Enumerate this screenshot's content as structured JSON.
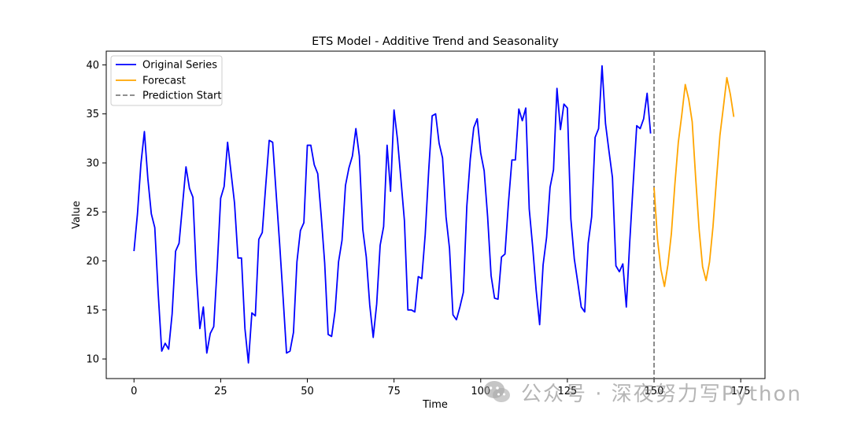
{
  "chart_data": {
    "type": "line",
    "title": "ETS Model - Additive Trend and Seasonality",
    "xlabel": "Time",
    "ylabel": "Value",
    "xlim": [
      -8,
      182
    ],
    "ylim": [
      8.0,
      41.4
    ],
    "xticks": [
      0,
      25,
      50,
      75,
      100,
      125,
      150,
      175
    ],
    "yticks": [
      10,
      15,
      20,
      25,
      30,
      35,
      40
    ],
    "grid": false,
    "legend_position": "top-left",
    "series": [
      {
        "name": "Original Series",
        "color": "#0000ff",
        "x_start": 0,
        "values": [
          21.0,
          24.8,
          29.9,
          33.2,
          28.4,
          24.8,
          23.4,
          16.6,
          10.8,
          11.6,
          11.0,
          14.6,
          21.0,
          21.8,
          25.7,
          29.6,
          27.4,
          26.5,
          18.6,
          13.1,
          15.3,
          10.6,
          12.6,
          13.3,
          19.4,
          26.4,
          27.6,
          32.1,
          29.0,
          25.9,
          20.3,
          20.3,
          13.1,
          9.6,
          14.7,
          14.4,
          22.2,
          22.9,
          27.7,
          32.3,
          32.1,
          26.9,
          21.8,
          16.3,
          10.6,
          10.8,
          12.7,
          19.9,
          23.1,
          23.9,
          31.8,
          31.8,
          29.8,
          28.9,
          24.6,
          19.8,
          12.5,
          12.3,
          14.9,
          19.9,
          22.1,
          27.7,
          29.5,
          30.7,
          33.5,
          30.7,
          23.2,
          20.4,
          15.5,
          12.2,
          15.6,
          21.6,
          23.5,
          31.8,
          27.1,
          35.4,
          32.4,
          28.3,
          24.1,
          15.0,
          15.0,
          14.8,
          18.4,
          18.2,
          22.7,
          29.2,
          34.8,
          35.0,
          32.0,
          30.5,
          24.5,
          21.3,
          14.5,
          14.0,
          15.3,
          16.8,
          25.6,
          30.4,
          33.6,
          34.5,
          31.0,
          29.2,
          24.5,
          18.5,
          16.2,
          16.1,
          20.4,
          20.7,
          25.9,
          30.3,
          30.3,
          35.5,
          34.3,
          35.6,
          25.3,
          21.4,
          17.0,
          13.5,
          19.6,
          22.4,
          27.5,
          29.3,
          37.6,
          33.4,
          36.0,
          35.6,
          24.3,
          20.2,
          17.8,
          15.3,
          14.8,
          21.8,
          24.5,
          32.6,
          33.5,
          39.9,
          34.0,
          31.2,
          28.5,
          19.5,
          18.9,
          19.7,
          15.3,
          22.0,
          28.0,
          33.8,
          33.5,
          34.5,
          37.1,
          33.0
        ]
      },
      {
        "name": "Forecast",
        "color": "#ffa500",
        "x_start": 150,
        "values": [
          27.5,
          22.2,
          19.1,
          17.4,
          19.6,
          22.8,
          27.8,
          32.1,
          34.9,
          38.0,
          36.5,
          34.2,
          28.5,
          23.2,
          19.4,
          18.0,
          19.9,
          23.5,
          28.3,
          32.8,
          35.7,
          38.7,
          37.0,
          34.7
        ]
      }
    ],
    "vline": {
      "name": "Prediction Start",
      "x": 150,
      "color": "#808080",
      "style": "dashed"
    }
  },
  "watermark": {
    "text": "公众号 · 深夜努力写Python",
    "logo_icon": "wechat-icon"
  }
}
